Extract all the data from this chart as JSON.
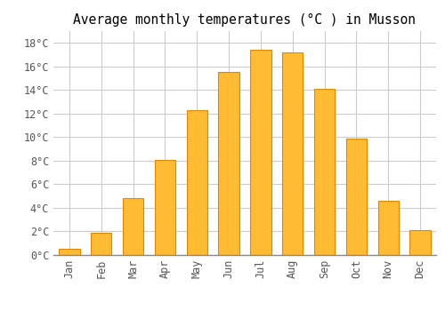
{
  "title": "Average monthly temperatures (°C ) in Musson",
  "months": [
    "Jan",
    "Feb",
    "Mar",
    "Apr",
    "May",
    "Jun",
    "Jul",
    "Aug",
    "Sep",
    "Oct",
    "Nov",
    "Dec"
  ],
  "temperatures": [
    0.5,
    1.9,
    4.8,
    8.1,
    12.3,
    15.5,
    17.4,
    17.2,
    14.1,
    9.9,
    4.6,
    2.1
  ],
  "bar_color": "#FFBB33",
  "bar_edge_color": "#E08800",
  "background_color": "#ffffff",
  "plot_bg_color": "#ffffff",
  "grid_color": "#cccccc",
  "ylim": [
    0,
    19
  ],
  "yticks": [
    0,
    2,
    4,
    6,
    8,
    10,
    12,
    14,
    16,
    18
  ],
  "ytick_labels": [
    "0°C",
    "2°C",
    "4°C",
    "6°C",
    "8°C",
    "10°C",
    "12°C",
    "14°C",
    "16°C",
    "18°C"
  ],
  "title_fontsize": 10.5,
  "tick_fontsize": 8.5,
  "font_family": "monospace",
  "bar_width": 0.65
}
